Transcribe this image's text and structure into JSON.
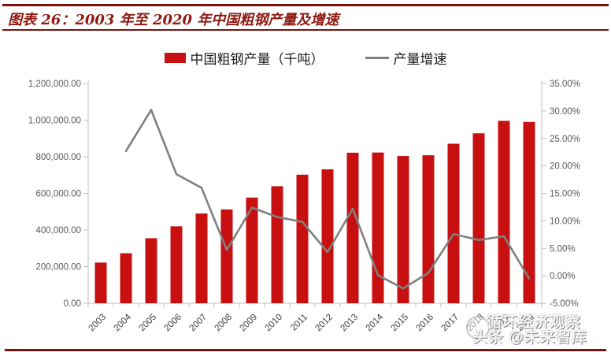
{
  "header": {
    "title": "图表 26：2003 年至 2020 年中国粗钢产量及增速"
  },
  "colors": {
    "bar_red": "#C81010",
    "line_gray": "#808080",
    "frame_dark_red": "#7D120E",
    "title_red": "#8E1A12",
    "axis_gray": "#BFBFBF",
    "tick_text_gray": "#595959"
  },
  "watermark": {
    "line1": "循环经济观察",
    "line2": "头条 @未来智库"
  },
  "chart_data": {
    "type": "bar",
    "combo": "bar + line, dual axis",
    "title": "图表 26：2003 年至 2020 年中国粗钢产量及增速",
    "categories": [
      "2003",
      "2004",
      "2005",
      "2006",
      "2007",
      "2008",
      "2009",
      "2010",
      "2011",
      "2012",
      "2013",
      "2014",
      "2015",
      "2016",
      "2017",
      "2018",
      "2019",
      "2020"
    ],
    "series": [
      {
        "name": "中国粗钢产量（千吨）",
        "type": "bar",
        "axis": "left",
        "color": "#C81010",
        "values": [
          222000,
          273000,
          355000,
          420000,
          490000,
          512000,
          577000,
          639000,
          702000,
          731000,
          822000,
          823000,
          804000,
          808000,
          871000,
          928000,
          996000,
          990000
        ]
      },
      {
        "name": "产量增速",
        "type": "line",
        "axis": "right",
        "color": "#808080",
        "values": [
          null,
          22.7,
          30.2,
          18.5,
          16.0,
          4.7,
          12.4,
          10.7,
          9.8,
          4.3,
          12.2,
          0.1,
          -2.3,
          0.5,
          7.6,
          6.5,
          7.2,
          -0.5
        ]
      }
    ],
    "left_axis": {
      "min": 0,
      "max": 1200000,
      "step": 200000,
      "tick_labels": [
        "0.00",
        "200,000.00",
        "400,000.00",
        "600,000.00",
        "800,000.00",
        "1,000,000.00",
        "1,200,000.00"
      ]
    },
    "right_axis": {
      "min": -5,
      "max": 35,
      "step": 5,
      "tick_labels": [
        "-5.00%",
        "0.00%",
        "5.00%",
        "10.00%",
        "15.00%",
        "20.00%",
        "25.00%",
        "30.00%",
        "35.00%"
      ]
    },
    "legend_position": "top",
    "grid": false,
    "xlabel": "",
    "ylabel_left": "千吨",
    "ylabel_right": "%"
  }
}
